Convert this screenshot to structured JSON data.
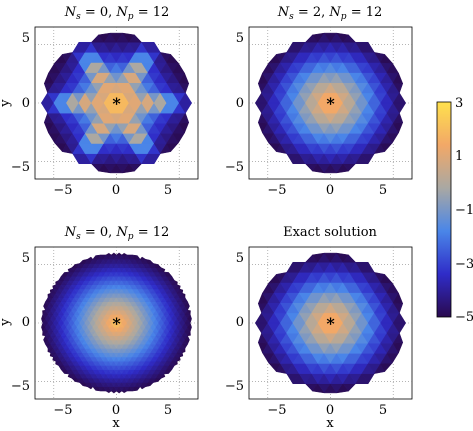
{
  "chart_data": {
    "type": "heatmap",
    "panels": [
      {
        "title_parts": {
          "s_label": "N",
          "s_sub": "s",
          "s_val": " = 0, ",
          "p_label": "N",
          "p_sub": "p",
          "p_val": " = 12"
        },
        "xlabel": "",
        "ylabel": "y",
        "xticks": [
          "−5",
          "0",
          "5"
        ],
        "yticks": [
          "5",
          "0",
          "−5"
        ],
        "xlim": [
          -6.5,
          6.5
        ],
        "ylim": [
          -6.5,
          6.5
        ],
        "pattern": "star",
        "mesh": "coarse",
        "peak": 3,
        "boundary": -5,
        "center_marker": "*"
      },
      {
        "title_parts": {
          "s_label": "N",
          "s_sub": "s",
          "s_val": " = 2, ",
          "p_label": "N",
          "p_sub": "p",
          "p_val": " = 12"
        },
        "xlabel": "",
        "ylabel": "",
        "xticks": [
          "−5",
          "0",
          "5"
        ],
        "yticks": [
          "5",
          "0",
          "−5"
        ],
        "xlim": [
          -6.5,
          6.5
        ],
        "ylim": [
          -6.5,
          6.5
        ],
        "pattern": "radial",
        "mesh": "coarse",
        "peak": 2.2,
        "boundary": -5,
        "center_marker": "*"
      },
      {
        "title_parts": {
          "s_label": "N",
          "s_sub": "s",
          "s_val": " = 0, ",
          "p_label": "N",
          "p_sub": "p",
          "p_val": " = 12"
        },
        "xlabel": "x",
        "ylabel": "y",
        "xticks": [
          "−5",
          "0",
          "5"
        ],
        "yticks": [
          "5",
          "0",
          "−5"
        ],
        "xlim": [
          -6.5,
          6.5
        ],
        "ylim": [
          -6.5,
          6.5
        ],
        "pattern": "radial",
        "mesh": "fine",
        "peak": 2.2,
        "boundary": -5,
        "center_marker": "*"
      },
      {
        "title": "Exact solution",
        "xlabel": "x",
        "ylabel": "",
        "xticks": [
          "−5",
          "0",
          "5"
        ],
        "yticks": [
          "5",
          "0",
          "−5"
        ],
        "xlim": [
          -6.5,
          6.5
        ],
        "ylim": [
          -6.5,
          6.5
        ],
        "pattern": "radial",
        "mesh": "coarse",
        "peak": 2.2,
        "boundary": -5,
        "center_marker": "*"
      }
    ],
    "colorbar": {
      "ticks": [
        3,
        1,
        -1,
        -3,
        -5
      ],
      "tick_labels": [
        "3",
        "1",
        "−1",
        "−3",
        "−5"
      ],
      "range": [
        -5,
        3
      ],
      "colormap": [
        "#2a0a4f",
        "#2f2cc8",
        "#4a86e8",
        "#a9a8a3",
        "#f2a867",
        "#ffe14d"
      ]
    },
    "grid": "dotted",
    "domain_radius": 6
  }
}
